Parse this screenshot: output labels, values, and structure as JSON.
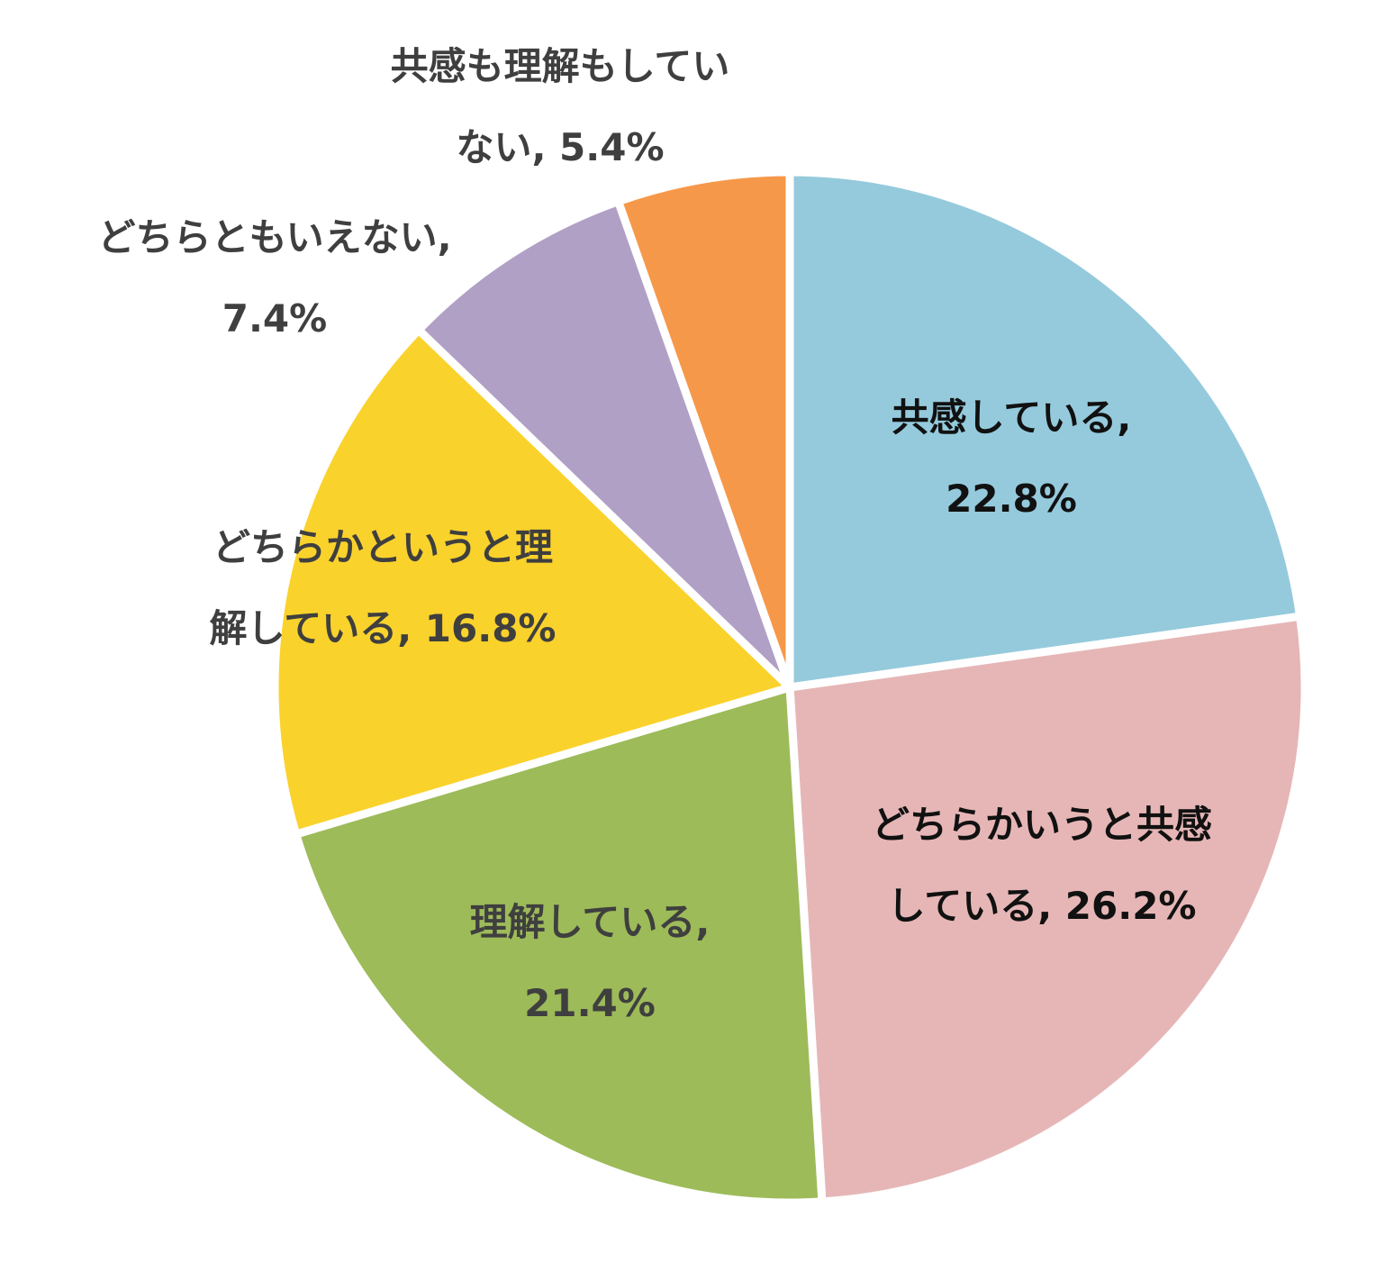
{
  "chart_data": {
    "type": "pie",
    "title": "",
    "start_angle_deg": 0,
    "direction": "clockwise",
    "slices": [
      {
        "label_lines": [
          "共感している,",
          "22.8%"
        ],
        "category": "共感している",
        "value": 22.8,
        "color": "#95cadc",
        "label_color": "#111111"
      },
      {
        "label_lines": [
          "どちらかいうと共感",
          "している, 26.2%"
        ],
        "category": "どちらかいうと共感している",
        "value": 26.2,
        "color": "#e6b6b6",
        "label_color": "#111111"
      },
      {
        "label_lines": [
          "理解している,",
          "21.4%"
        ],
        "category": "理解している",
        "value": 21.4,
        "color": "#9dbb59",
        "label_color": "#3f3f3f"
      },
      {
        "label_lines": [
          "どちらかというと理",
          "解している, 16.8%"
        ],
        "category": "どちらかというと理解している",
        "value": 16.8,
        "color": "#fad22c",
        "label_color": "#3f3f3f"
      },
      {
        "label_lines": [
          "どちらともいえない,",
          "7.4%"
        ],
        "category": "どちらともいえない",
        "value": 7.4,
        "color": "#b1a0c6",
        "label_color": "#3f3f3f"
      },
      {
        "label_lines": [
          "共感も理解もしてい",
          "ない, 5.4%"
        ],
        "category": "共感も理解もしていない",
        "value": 5.4,
        "color": "#f6984a",
        "label_color": "#3f3f3f"
      }
    ]
  }
}
